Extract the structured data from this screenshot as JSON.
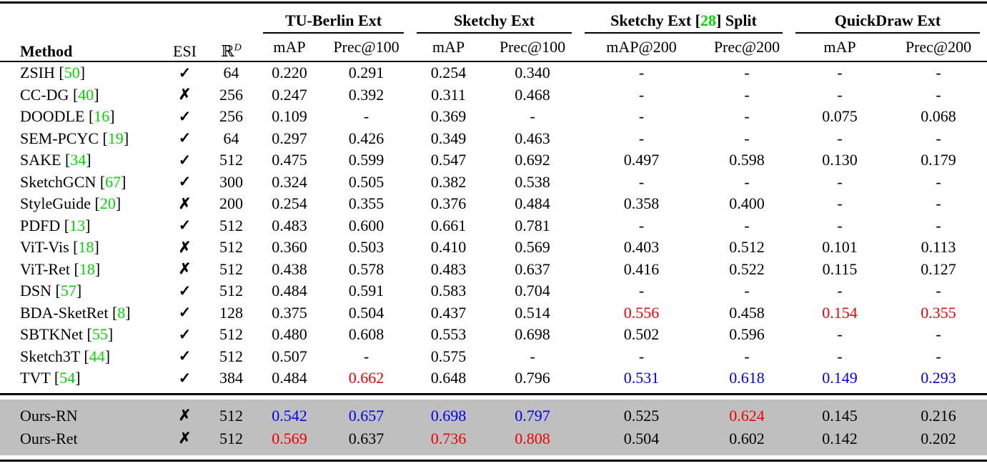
{
  "colors": {
    "red": "#ee0000",
    "blue": "#0000ee",
    "green": "#00d800",
    "row_highlight": "#bfbfbf"
  },
  "symbols": {
    "check": "✓",
    "cross": "✗"
  },
  "header": {
    "method": "Method",
    "esi": "ESI",
    "dim_base": "ℝ",
    "dim_sup": "D",
    "groups": [
      {
        "title_parts": [
          {
            "t": "TU-Berlin Ext"
          }
        ],
        "subcols": [
          "mAP",
          "Prec@100"
        ]
      },
      {
        "title_parts": [
          {
            "t": "Sketchy Ext"
          }
        ],
        "subcols": [
          "mAP",
          "Prec@100"
        ]
      },
      {
        "title_parts": [
          {
            "t": "Sketchy Ext ["
          },
          {
            "t": "28",
            "color": "green"
          },
          {
            "t": "] Split"
          }
        ],
        "subcols": [
          "mAP@200",
          "Prec@200"
        ]
      },
      {
        "title_parts": [
          {
            "t": "QuickDraw Ext"
          }
        ],
        "subcols": [
          "mAP",
          "Prec@200"
        ]
      }
    ]
  },
  "rows": [
    {
      "method": "ZSIH",
      "cite": "50",
      "esi": "yes",
      "dim": "64",
      "values": [
        "0.220",
        "0.291",
        "0.254",
        "0.340",
        "-",
        "-",
        "-",
        "-"
      ],
      "value_colors": [
        "",
        "",
        "",
        "",
        "",
        "",
        "",
        ""
      ]
    },
    {
      "method": "CC-DG",
      "cite": "40",
      "esi": "no",
      "dim": "256",
      "values": [
        "0.247",
        "0.392",
        "0.311",
        "0.468",
        "-",
        "-",
        "-",
        "-"
      ],
      "value_colors": [
        "",
        "",
        "",
        "",
        "",
        "",
        "",
        ""
      ]
    },
    {
      "method": "DOODLE",
      "cite": "16",
      "esi": "yes",
      "dim": "256",
      "values": [
        "0.109",
        "-",
        "0.369",
        "-",
        "-",
        "-",
        "0.075",
        "0.068"
      ],
      "value_colors": [
        "",
        "",
        "",
        "",
        "",
        "",
        "",
        ""
      ]
    },
    {
      "method": "SEM-PCYC",
      "cite": "19",
      "esi": "yes",
      "dim": "64",
      "values": [
        "0.297",
        "0.426",
        "0.349",
        "0.463",
        "-",
        "-",
        "-",
        "-"
      ],
      "value_colors": [
        "",
        "",
        "",
        "",
        "",
        "",
        "",
        ""
      ]
    },
    {
      "method": "SAKE",
      "cite": "34",
      "esi": "yes",
      "dim": "512",
      "values": [
        "0.475",
        "0.599",
        "0.547",
        "0.692",
        "0.497",
        "0.598",
        "0.130",
        "0.179"
      ],
      "value_colors": [
        "",
        "",
        "",
        "",
        "",
        "",
        "",
        ""
      ]
    },
    {
      "method": "SketchGCN",
      "cite": "67",
      "esi": "yes",
      "dim": "300",
      "values": [
        "0.324",
        "0.505",
        "0.382",
        "0.538",
        "-",
        "-",
        "-",
        "-"
      ],
      "value_colors": [
        "",
        "",
        "",
        "",
        "",
        "",
        "",
        ""
      ]
    },
    {
      "method": "StyleGuide",
      "cite": "20",
      "esi": "no",
      "dim": "200",
      "values": [
        "0.254",
        "0.355",
        "0.376",
        "0.484",
        "0.358",
        "0.400",
        "-",
        "-"
      ],
      "value_colors": [
        "",
        "",
        "",
        "",
        "",
        "",
        "",
        ""
      ]
    },
    {
      "method": "PDFD",
      "cite": "13",
      "esi": "yes",
      "dim": "512",
      "values": [
        "0.483",
        "0.600",
        "0.661",
        "0.781",
        "-",
        "-",
        "-",
        "-"
      ],
      "value_colors": [
        "",
        "",
        "",
        "",
        "",
        "",
        "",
        ""
      ]
    },
    {
      "method": "ViT-Vis",
      "cite": "18",
      "esi": "no",
      "dim": "512",
      "values": [
        "0.360",
        "0.503",
        "0.410",
        "0.569",
        "0.403",
        "0.512",
        "0.101",
        "0.113"
      ],
      "value_colors": [
        "",
        "",
        "",
        "",
        "",
        "",
        "",
        ""
      ]
    },
    {
      "method": "ViT-Ret",
      "cite": "18",
      "esi": "no",
      "dim": "512",
      "values": [
        "0.438",
        "0.578",
        "0.483",
        "0.637",
        "0.416",
        "0.522",
        "0.115",
        "0.127"
      ],
      "value_colors": [
        "",
        "",
        "",
        "",
        "",
        "",
        "",
        ""
      ]
    },
    {
      "method": "DSN",
      "cite": "57",
      "esi": "yes",
      "dim": "512",
      "values": [
        "0.484",
        "0.591",
        "0.583",
        "0.704",
        "-",
        "-",
        "-",
        "-"
      ],
      "value_colors": [
        "",
        "",
        "",
        "",
        "",
        "",
        "",
        ""
      ]
    },
    {
      "method": "BDA-SketRet",
      "cite": "8",
      "esi": "yes",
      "dim": "128",
      "values": [
        "0.375",
        "0.504",
        "0.437",
        "0.514",
        "0.556",
        "0.458",
        "0.154",
        "0.355"
      ],
      "value_colors": [
        "",
        "",
        "",
        "",
        "r",
        "",
        "r",
        "r"
      ]
    },
    {
      "method": "SBTKNet",
      "cite": "55",
      "esi": "yes",
      "dim": "512",
      "values": [
        "0.480",
        "0.608",
        "0.553",
        "0.698",
        "0.502",
        "0.596",
        "-",
        "-"
      ],
      "value_colors": [
        "",
        "",
        "",
        "",
        "",
        "",
        "",
        ""
      ]
    },
    {
      "method": "Sketch3T",
      "cite": "44",
      "esi": "yes",
      "dim": "512",
      "values": [
        "0.507",
        "-",
        "0.575",
        "-",
        "-",
        "-",
        "-",
        "-"
      ],
      "value_colors": [
        "",
        "",
        "",
        "",
        "",
        "",
        "",
        ""
      ]
    },
    {
      "method": "TVT",
      "cite": "54",
      "esi": "yes",
      "dim": "384",
      "values": [
        "0.484",
        "0.662",
        "0.648",
        "0.796",
        "0.531",
        "0.618",
        "0.149",
        "0.293"
      ],
      "value_colors": [
        "",
        "r",
        "",
        "",
        "b",
        "b",
        "b",
        "b"
      ]
    }
  ],
  "highlight_rows": [
    {
      "method": "Ours-RN",
      "cite": null,
      "esi": "no",
      "dim": "512",
      "values": [
        "0.542",
        "0.657",
        "0.698",
        "0.797",
        "0.525",
        "0.624",
        "0.145",
        "0.216"
      ],
      "value_colors": [
        "b",
        "b",
        "b",
        "b",
        "",
        "r",
        "",
        ""
      ]
    },
    {
      "method": "Ours-Ret",
      "cite": null,
      "esi": "no",
      "dim": "512",
      "values": [
        "0.569",
        "0.637",
        "0.736",
        "0.808",
        "0.504",
        "0.602",
        "0.142",
        "0.202"
      ],
      "value_colors": [
        "r",
        "",
        "r",
        "r",
        "",
        "",
        "",
        ""
      ]
    }
  ]
}
